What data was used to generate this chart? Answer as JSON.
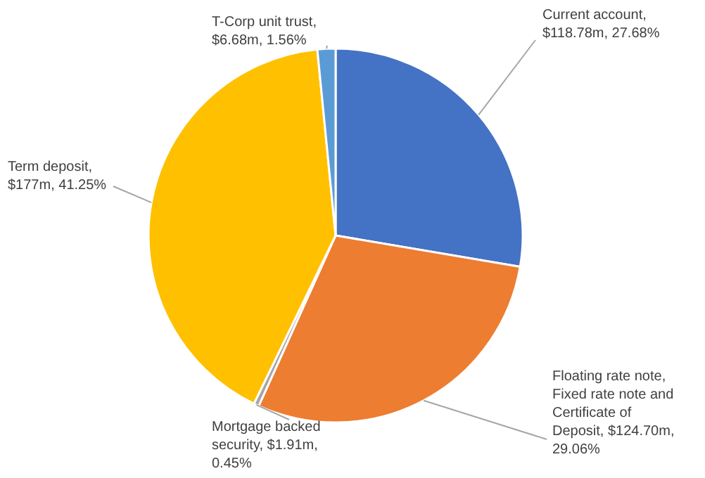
{
  "chart_data": {
    "type": "pie",
    "categories": [
      "Current account",
      "Floating rate note, Fixed rate note and Certificate of Deposit",
      "Mortgage backed security",
      "Term deposit",
      "T-Corp unit trust"
    ],
    "values": [
      27.68,
      29.06,
      0.45,
      41.25,
      1.56
    ],
    "colors": [
      "#4472c4",
      "#ed7d31",
      "#a5a5a5",
      "#ffc000",
      "#5b9bd5"
    ],
    "value_labels": [
      ", $118.78m, 27.68%",
      ", $124.70m, 29.06%",
      ", $1.91m, 0.45%",
      ", $177m, 41.25%",
      ", $6.68m, 1.56%"
    ]
  }
}
